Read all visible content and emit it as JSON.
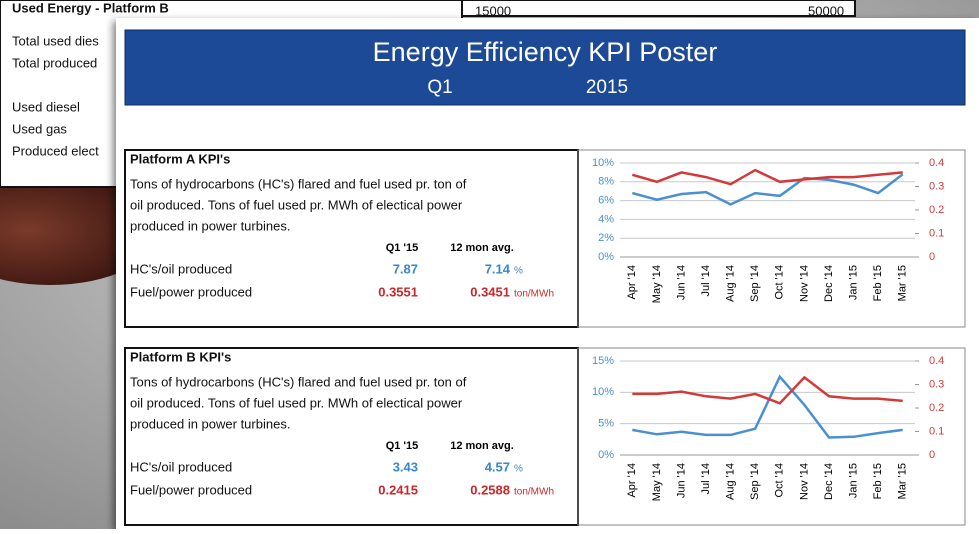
{
  "background_sheet": {
    "title": "Used Energy - Platform B",
    "rows": [
      "Total used dies",
      "Total produced",
      "Used diesel",
      "Used gas",
      "Produced elect"
    ],
    "numbers": [
      "15000",
      "50000"
    ]
  },
  "header": {
    "title": "Energy Efficiency KPI Poster",
    "quarter": "Q1",
    "year": "2015"
  },
  "panels": [
    {
      "title": "Platform A KPI's",
      "description": [
        "Tons of hydrocarbons (HC's) flared and fuel used pr. ton of",
        "oil produced. Tons of fuel used pr. MWh of electical power",
        "produced in power turbines."
      ],
      "col_headers": [
        "Q1 '15",
        "12 mon avg."
      ],
      "rows": [
        {
          "label": "HC's/oil produced",
          "q1": "7.87",
          "avg": "7.14",
          "unit": "%"
        },
        {
          "label": "Fuel/power produced",
          "q1": "0.3551",
          "avg": "0.3451",
          "unit": "ton/MWh"
        }
      ]
    },
    {
      "title": "Platform B KPI's",
      "description": [
        "Tons of hydrocarbons (HC's) flared and fuel used pr. ton of",
        "oil produced. Tons of fuel used pr. MWh of electical power",
        "produced in power turbines."
      ],
      "col_headers": [
        "Q1 '15",
        "12 mon avg."
      ],
      "rows": [
        {
          "label": "HC's/oil produced",
          "q1": "3.43",
          "avg": "4.57",
          "unit": "%"
        },
        {
          "label": "Fuel/power produced",
          "q1": "0.2415",
          "avg": "0.2588",
          "unit": "ton/MWh"
        }
      ]
    }
  ],
  "chart_data": [
    {
      "type": "line",
      "categories": [
        "Apr '14",
        "May '14",
        "Jun '14",
        "Jul '14",
        "Aug '14",
        "Sep '14",
        "Oct '14",
        "Nov '14",
        "Dec '14",
        "Jan '15",
        "Feb '15",
        "Mar '15"
      ],
      "series": [
        {
          "color": "#4a90d0",
          "values": [
            6.8,
            6.1,
            6.7,
            6.9,
            5.6,
            6.8,
            6.5,
            8.4,
            8.2,
            7.7,
            6.8,
            8.8
          ]
        },
        {
          "color": "#d23a3a",
          "axis": "y2",
          "values": [
            0.35,
            0.32,
            0.36,
            0.34,
            0.31,
            0.37,
            0.32,
            0.33,
            0.34,
            0.34,
            0.35,
            0.36
          ]
        }
      ],
      "ylim": [
        0,
        10
      ],
      "yticks": [
        {
          "value": 0,
          "label": "0%"
        },
        {
          "value": 2,
          "label": "2%"
        },
        {
          "value": 4,
          "label": "4%"
        },
        {
          "value": 6,
          "label": "6%"
        },
        {
          "value": 8,
          "label": "8%"
        },
        {
          "value": 10,
          "label": "10%"
        }
      ],
      "y2lim": [
        0,
        0.4
      ],
      "y2ticks": [
        0,
        0.1,
        0.2,
        0.3,
        0.4
      ],
      "grid": true
    },
    {
      "type": "line",
      "categories": [
        "Apr '14",
        "May '14",
        "Jun '14",
        "Jul '14",
        "Aug '14",
        "Sep '14",
        "Oct '14",
        "Nov '14",
        "Dec '14",
        "Jan '15",
        "Feb '15",
        "Mar '15"
      ],
      "series": [
        {
          "color": "#4a90d0",
          "values": [
            4.0,
            3.3,
            3.7,
            3.2,
            3.2,
            4.2,
            12.5,
            8.0,
            2.8,
            2.9,
            3.5,
            4.0
          ]
        },
        {
          "color": "#d23a3a",
          "axis": "y2",
          "values": [
            0.26,
            0.26,
            0.27,
            0.25,
            0.24,
            0.26,
            0.22,
            0.33,
            0.25,
            0.24,
            0.24,
            0.23
          ]
        }
      ],
      "ylim": [
        0,
        15
      ],
      "yticks": [
        {
          "value": 0,
          "label": "0%"
        },
        {
          "value": 5,
          "label": "5%"
        },
        {
          "value": 10,
          "label": "10%"
        },
        {
          "value": 15,
          "label": "15%"
        }
      ],
      "y2lim": [
        0,
        0.4
      ],
      "y2ticks": [
        0,
        0.1,
        0.2,
        0.3,
        0.4
      ],
      "grid": true
    }
  ]
}
